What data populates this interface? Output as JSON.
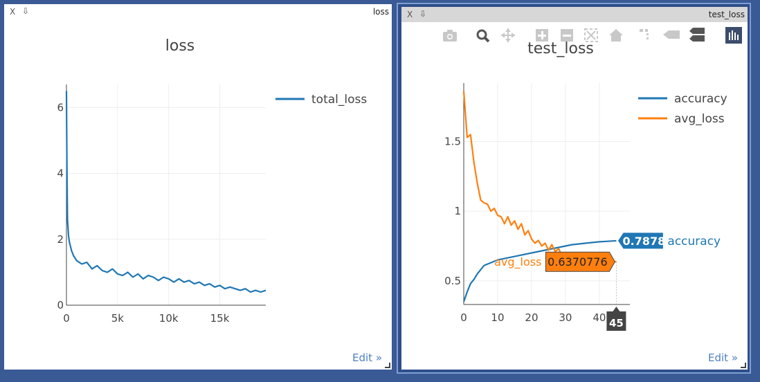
{
  "left_window": {
    "close_label": "X",
    "pin_icon": "pin-icon",
    "name": "loss",
    "edit_label": "Edit »"
  },
  "right_window": {
    "close_label": "X",
    "pin_icon": "pin-icon",
    "name": "test_loss",
    "edit_label": "Edit »",
    "modebar": [
      "camera-icon",
      "zoom-icon",
      "pan-icon",
      "zoom-in-icon",
      "zoom-out-icon",
      "autoscale-icon",
      "home-icon",
      "spike-lines-icon",
      "hover-closest-icon",
      "hover-compare-icon",
      "plotly-logo-icon"
    ]
  },
  "chart_data": [
    {
      "type": "line",
      "title": "loss",
      "xlabel": "",
      "ylabel": "",
      "xlim": [
        0,
        19500
      ],
      "ylim": [
        0,
        6.7
      ],
      "xticks": [
        0,
        5000,
        10000,
        15000
      ],
      "xtick_labels": [
        "0",
        "5k",
        "10k",
        "15k"
      ],
      "yticks": [
        0,
        2,
        4,
        6
      ],
      "ytick_labels": [
        "0",
        "2",
        "4",
        "6"
      ],
      "grid": true,
      "legend_position": "top-right",
      "series": [
        {
          "name": "total_loss",
          "color": "#1f77b4",
          "x": [
            0,
            50,
            100,
            200,
            300,
            500,
            700,
            1000,
            1500,
            2000,
            2500,
            3000,
            3500,
            4000,
            4500,
            5000,
            5500,
            6000,
            6500,
            7000,
            7500,
            8000,
            8500,
            9000,
            9500,
            10000,
            10500,
            11000,
            11500,
            12000,
            12500,
            13000,
            13500,
            14000,
            14500,
            15000,
            15500,
            16000,
            16500,
            17000,
            17500,
            18000,
            18500,
            19000,
            19500
          ],
          "y": [
            6.5,
            4.2,
            2.6,
            2.1,
            1.9,
            1.65,
            1.5,
            1.35,
            1.25,
            1.3,
            1.1,
            1.2,
            1.05,
            1.0,
            1.1,
            0.95,
            0.9,
            1.0,
            0.85,
            0.95,
            0.8,
            0.9,
            0.85,
            0.75,
            0.85,
            0.8,
            0.7,
            0.8,
            0.7,
            0.75,
            0.65,
            0.7,
            0.6,
            0.65,
            0.55,
            0.6,
            0.5,
            0.55,
            0.5,
            0.45,
            0.5,
            0.4,
            0.45,
            0.4,
            0.45
          ]
        }
      ]
    },
    {
      "type": "line",
      "title": "test_loss",
      "xlabel": "",
      "ylabel": "",
      "xlim": [
        0,
        49
      ],
      "ylim": [
        0.33,
        1.92
      ],
      "xticks": [
        0,
        10,
        20,
        30,
        40
      ],
      "xtick_labels": [
        "0",
        "10",
        "20",
        "30",
        "40"
      ],
      "yticks": [
        0.5,
        1,
        1.5
      ],
      "ytick_labels": [
        "0.5",
        "1",
        "1.5"
      ],
      "grid": true,
      "legend_position": "top-right",
      "series": [
        {
          "name": "accuracy",
          "color": "#1f77b4",
          "x": [
            0,
            1,
            2,
            3,
            4,
            5,
            6,
            8,
            10,
            12,
            14,
            16,
            18,
            20,
            22,
            24,
            26,
            28,
            30,
            32,
            34,
            36,
            38,
            40,
            42,
            44,
            45
          ],
          "y": [
            0.35,
            0.42,
            0.48,
            0.51,
            0.55,
            0.58,
            0.61,
            0.63,
            0.65,
            0.66,
            0.67,
            0.68,
            0.69,
            0.7,
            0.71,
            0.72,
            0.73,
            0.74,
            0.75,
            0.76,
            0.765,
            0.77,
            0.775,
            0.78,
            0.783,
            0.786,
            0.7878
          ]
        },
        {
          "name": "avg_loss",
          "color": "#ff7f0e",
          "x": [
            0,
            1,
            2,
            3,
            4,
            5,
            6,
            7,
            8,
            9,
            10,
            11,
            12,
            13,
            14,
            15,
            16,
            17,
            18,
            19,
            20,
            21,
            22,
            23,
            24,
            25,
            26,
            27,
            28,
            29,
            30,
            32,
            34,
            36,
            38,
            40,
            42,
            44,
            45
          ],
          "y": [
            1.86,
            1.53,
            1.55,
            1.35,
            1.2,
            1.08,
            1.06,
            1.05,
            1.0,
            1.02,
            0.97,
            0.96,
            0.91,
            0.96,
            0.9,
            0.93,
            0.87,
            0.91,
            0.83,
            0.86,
            0.8,
            0.77,
            0.79,
            0.75,
            0.77,
            0.72,
            0.76,
            0.71,
            0.73,
            0.68,
            0.7,
            0.67,
            0.66,
            0.65,
            0.645,
            0.64,
            0.638,
            0.637,
            0.6370776
          ]
        }
      ],
      "hover": {
        "x_label": "45",
        "labels": [
          {
            "series": "accuracy",
            "value": "0.7878",
            "name": "accuracy"
          },
          {
            "series": "avg_loss",
            "value": "0.6370776",
            "name": "avg_loss"
          }
        ]
      }
    }
  ]
}
